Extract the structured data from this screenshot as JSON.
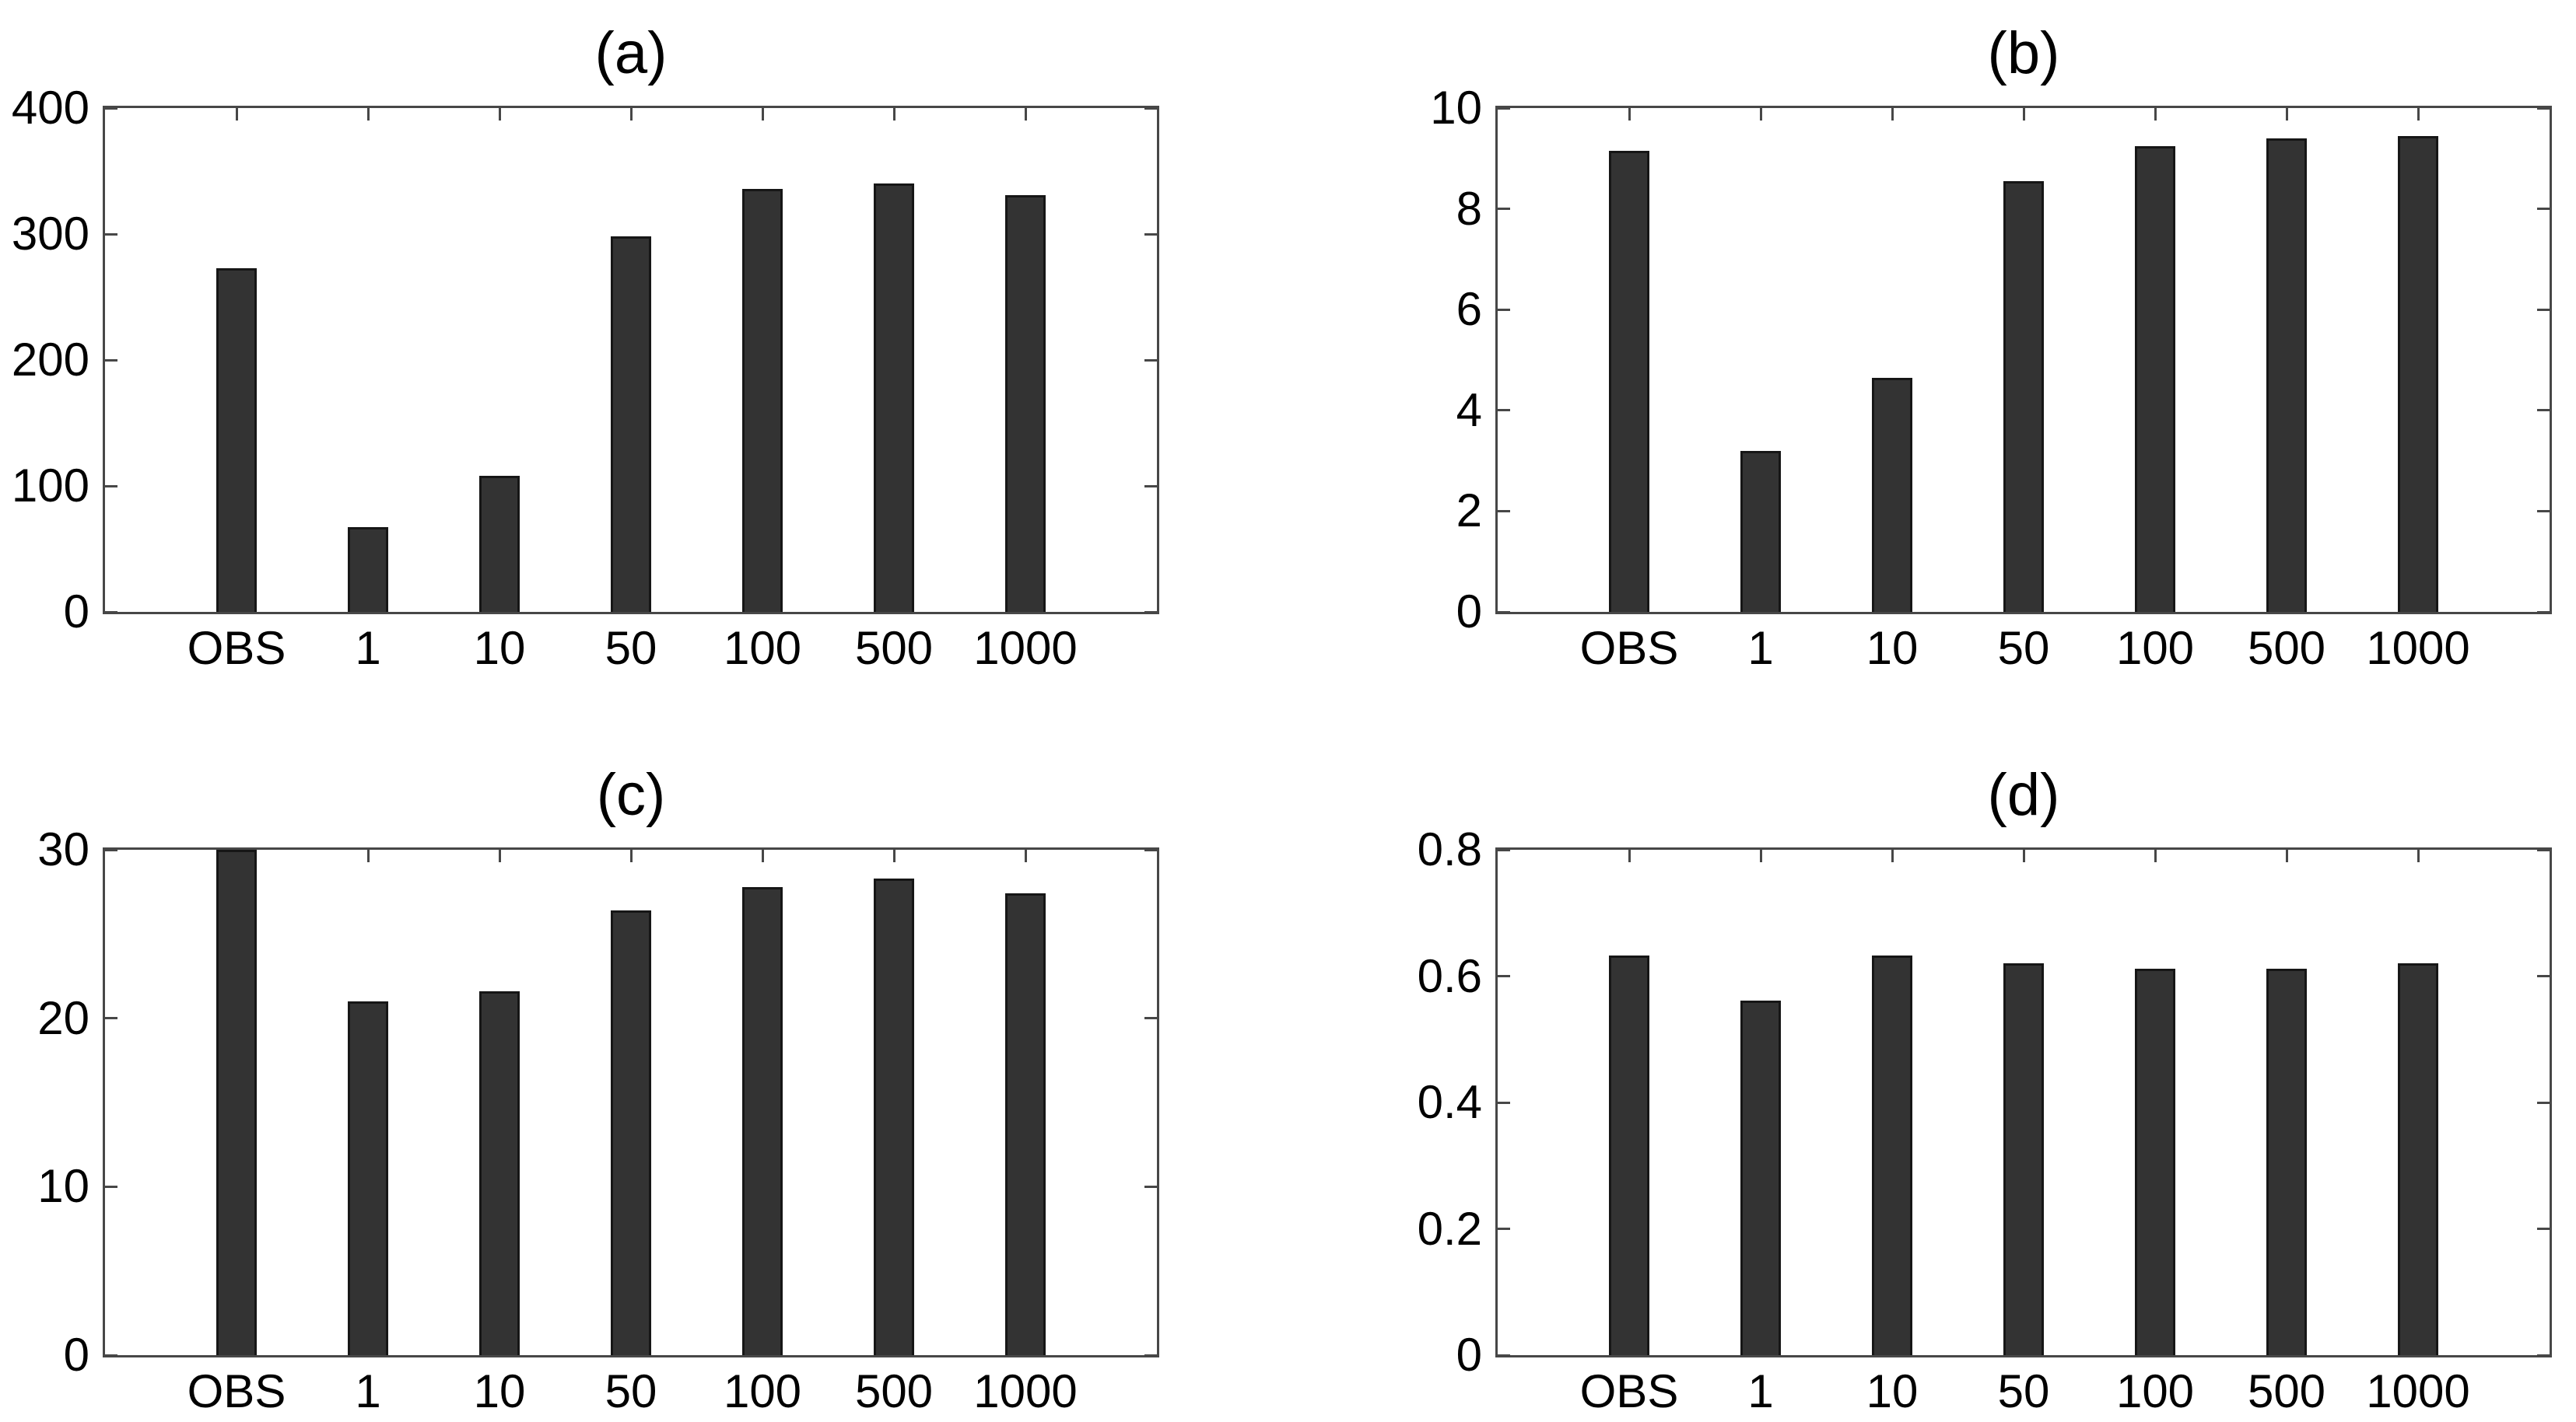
{
  "figure": {
    "background_color": "#ffffff",
    "bar_fill_color": "#333333",
    "bar_edge_color": "#161616",
    "axis_color": "#474747",
    "text_color": "#000000"
  },
  "chart_data": [
    {
      "type": "bar",
      "panel": "a",
      "title": "(a)",
      "categories": [
        "OBS",
        "1",
        "10",
        "50",
        "100",
        "500",
        "1000"
      ],
      "values": [
        273,
        67,
        108,
        298,
        336,
        340,
        331
      ],
      "ylim": [
        0,
        400
      ],
      "yticks": [
        0,
        100,
        200,
        300,
        400
      ],
      "ytick_labels": [
        "0",
        "100",
        "200",
        "300",
        "400"
      ],
      "xlabel": "",
      "ylabel": "",
      "grid": false,
      "legend": null,
      "bar_width_fraction": 0.31
    },
    {
      "type": "bar",
      "panel": "b",
      "title": "(b)",
      "categories": [
        "OBS",
        "1",
        "10",
        "50",
        "100",
        "500",
        "1000"
      ],
      "values": [
        9.15,
        3.2,
        4.65,
        8.55,
        9.25,
        9.4,
        9.45
      ],
      "ylim": [
        0,
        10
      ],
      "yticks": [
        0,
        2,
        4,
        6,
        8,
        10
      ],
      "ytick_labels": [
        "0",
        "2",
        "4",
        "6",
        "8",
        "10"
      ],
      "xlabel": "",
      "ylabel": "",
      "grid": false,
      "legend": null,
      "bar_width_fraction": 0.31
    },
    {
      "type": "bar",
      "panel": "c",
      "title": "(c)",
      "categories": [
        "OBS",
        "1",
        "10",
        "50",
        "100",
        "500",
        "1000"
      ],
      "values": [
        30,
        21,
        21.6,
        26.4,
        27.8,
        28.3,
        27.4
      ],
      "ylim": [
        0,
        30
      ],
      "yticks": [
        0,
        10,
        20,
        30
      ],
      "ytick_labels": [
        "0",
        "10",
        "20",
        "30"
      ],
      "xlabel": "",
      "ylabel": "",
      "grid": false,
      "legend": null,
      "bar_width_fraction": 0.31
    },
    {
      "type": "bar",
      "panel": "d",
      "title": "(d)",
      "categories": [
        "OBS",
        "1",
        "10",
        "50",
        "100",
        "500",
        "1000"
      ],
      "values": [
        0.632,
        0.561,
        0.632,
        0.62,
        0.612,
        0.612,
        0.62
      ],
      "ylim": [
        0,
        0.8
      ],
      "yticks": [
        0,
        0.2,
        0.4,
        0.6,
        0.8
      ],
      "ytick_labels": [
        "0",
        "0.2",
        "0.4",
        "0.6",
        "0.8"
      ],
      "xlabel": "",
      "ylabel": "",
      "grid": false,
      "legend": null,
      "bar_width_fraction": 0.31
    }
  ]
}
